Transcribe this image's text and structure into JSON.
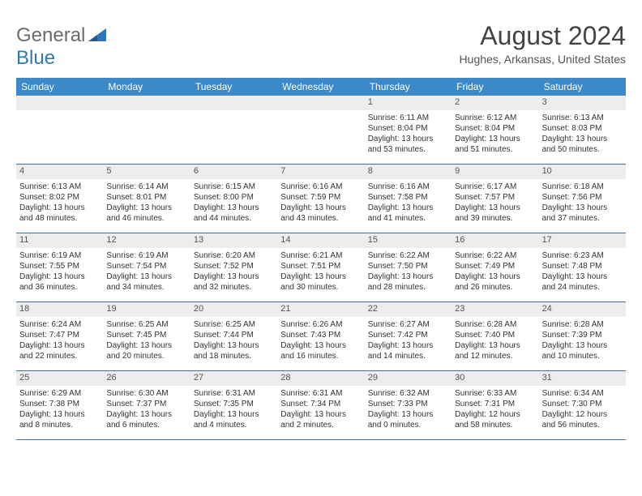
{
  "logo": {
    "general": "General",
    "blue": "Blue"
  },
  "title": {
    "month": "August 2024",
    "location": "Hughes, Arkansas, United States"
  },
  "colors": {
    "header_bg": "#3b89c9",
    "header_text": "#ffffff",
    "band_bg": "#ededed",
    "row_border": "#3b6fa0",
    "logo_gray": "#6b6b6b",
    "logo_blue": "#2f77b8"
  },
  "daysOfWeek": [
    "Sunday",
    "Monday",
    "Tuesday",
    "Wednesday",
    "Thursday",
    "Friday",
    "Saturday"
  ],
  "weeks": [
    [
      null,
      null,
      null,
      null,
      {
        "n": "1",
        "sr": "Sunrise: 6:11 AM",
        "ss": "Sunset: 8:04 PM",
        "d1": "Daylight: 13 hours",
        "d2": "and 53 minutes."
      },
      {
        "n": "2",
        "sr": "Sunrise: 6:12 AM",
        "ss": "Sunset: 8:04 PM",
        "d1": "Daylight: 13 hours",
        "d2": "and 51 minutes."
      },
      {
        "n": "3",
        "sr": "Sunrise: 6:13 AM",
        "ss": "Sunset: 8:03 PM",
        "d1": "Daylight: 13 hours",
        "d2": "and 50 minutes."
      }
    ],
    [
      {
        "n": "4",
        "sr": "Sunrise: 6:13 AM",
        "ss": "Sunset: 8:02 PM",
        "d1": "Daylight: 13 hours",
        "d2": "and 48 minutes."
      },
      {
        "n": "5",
        "sr": "Sunrise: 6:14 AM",
        "ss": "Sunset: 8:01 PM",
        "d1": "Daylight: 13 hours",
        "d2": "and 46 minutes."
      },
      {
        "n": "6",
        "sr": "Sunrise: 6:15 AM",
        "ss": "Sunset: 8:00 PM",
        "d1": "Daylight: 13 hours",
        "d2": "and 44 minutes."
      },
      {
        "n": "7",
        "sr": "Sunrise: 6:16 AM",
        "ss": "Sunset: 7:59 PM",
        "d1": "Daylight: 13 hours",
        "d2": "and 43 minutes."
      },
      {
        "n": "8",
        "sr": "Sunrise: 6:16 AM",
        "ss": "Sunset: 7:58 PM",
        "d1": "Daylight: 13 hours",
        "d2": "and 41 minutes."
      },
      {
        "n": "9",
        "sr": "Sunrise: 6:17 AM",
        "ss": "Sunset: 7:57 PM",
        "d1": "Daylight: 13 hours",
        "d2": "and 39 minutes."
      },
      {
        "n": "10",
        "sr": "Sunrise: 6:18 AM",
        "ss": "Sunset: 7:56 PM",
        "d1": "Daylight: 13 hours",
        "d2": "and 37 minutes."
      }
    ],
    [
      {
        "n": "11",
        "sr": "Sunrise: 6:19 AM",
        "ss": "Sunset: 7:55 PM",
        "d1": "Daylight: 13 hours",
        "d2": "and 36 minutes."
      },
      {
        "n": "12",
        "sr": "Sunrise: 6:19 AM",
        "ss": "Sunset: 7:54 PM",
        "d1": "Daylight: 13 hours",
        "d2": "and 34 minutes."
      },
      {
        "n": "13",
        "sr": "Sunrise: 6:20 AM",
        "ss": "Sunset: 7:52 PM",
        "d1": "Daylight: 13 hours",
        "d2": "and 32 minutes."
      },
      {
        "n": "14",
        "sr": "Sunrise: 6:21 AM",
        "ss": "Sunset: 7:51 PM",
        "d1": "Daylight: 13 hours",
        "d2": "and 30 minutes."
      },
      {
        "n": "15",
        "sr": "Sunrise: 6:22 AM",
        "ss": "Sunset: 7:50 PM",
        "d1": "Daylight: 13 hours",
        "d2": "and 28 minutes."
      },
      {
        "n": "16",
        "sr": "Sunrise: 6:22 AM",
        "ss": "Sunset: 7:49 PM",
        "d1": "Daylight: 13 hours",
        "d2": "and 26 minutes."
      },
      {
        "n": "17",
        "sr": "Sunrise: 6:23 AM",
        "ss": "Sunset: 7:48 PM",
        "d1": "Daylight: 13 hours",
        "d2": "and 24 minutes."
      }
    ],
    [
      {
        "n": "18",
        "sr": "Sunrise: 6:24 AM",
        "ss": "Sunset: 7:47 PM",
        "d1": "Daylight: 13 hours",
        "d2": "and 22 minutes."
      },
      {
        "n": "19",
        "sr": "Sunrise: 6:25 AM",
        "ss": "Sunset: 7:45 PM",
        "d1": "Daylight: 13 hours",
        "d2": "and 20 minutes."
      },
      {
        "n": "20",
        "sr": "Sunrise: 6:25 AM",
        "ss": "Sunset: 7:44 PM",
        "d1": "Daylight: 13 hours",
        "d2": "and 18 minutes."
      },
      {
        "n": "21",
        "sr": "Sunrise: 6:26 AM",
        "ss": "Sunset: 7:43 PM",
        "d1": "Daylight: 13 hours",
        "d2": "and 16 minutes."
      },
      {
        "n": "22",
        "sr": "Sunrise: 6:27 AM",
        "ss": "Sunset: 7:42 PM",
        "d1": "Daylight: 13 hours",
        "d2": "and 14 minutes."
      },
      {
        "n": "23",
        "sr": "Sunrise: 6:28 AM",
        "ss": "Sunset: 7:40 PM",
        "d1": "Daylight: 13 hours",
        "d2": "and 12 minutes."
      },
      {
        "n": "24",
        "sr": "Sunrise: 6:28 AM",
        "ss": "Sunset: 7:39 PM",
        "d1": "Daylight: 13 hours",
        "d2": "and 10 minutes."
      }
    ],
    [
      {
        "n": "25",
        "sr": "Sunrise: 6:29 AM",
        "ss": "Sunset: 7:38 PM",
        "d1": "Daylight: 13 hours",
        "d2": "and 8 minutes."
      },
      {
        "n": "26",
        "sr": "Sunrise: 6:30 AM",
        "ss": "Sunset: 7:37 PM",
        "d1": "Daylight: 13 hours",
        "d2": "and 6 minutes."
      },
      {
        "n": "27",
        "sr": "Sunrise: 6:31 AM",
        "ss": "Sunset: 7:35 PM",
        "d1": "Daylight: 13 hours",
        "d2": "and 4 minutes."
      },
      {
        "n": "28",
        "sr": "Sunrise: 6:31 AM",
        "ss": "Sunset: 7:34 PM",
        "d1": "Daylight: 13 hours",
        "d2": "and 2 minutes."
      },
      {
        "n": "29",
        "sr": "Sunrise: 6:32 AM",
        "ss": "Sunset: 7:33 PM",
        "d1": "Daylight: 13 hours",
        "d2": "and 0 minutes."
      },
      {
        "n": "30",
        "sr": "Sunrise: 6:33 AM",
        "ss": "Sunset: 7:31 PM",
        "d1": "Daylight: 12 hours",
        "d2": "and 58 minutes."
      },
      {
        "n": "31",
        "sr": "Sunrise: 6:34 AM",
        "ss": "Sunset: 7:30 PM",
        "d1": "Daylight: 12 hours",
        "d2": "and 56 minutes."
      }
    ]
  ]
}
